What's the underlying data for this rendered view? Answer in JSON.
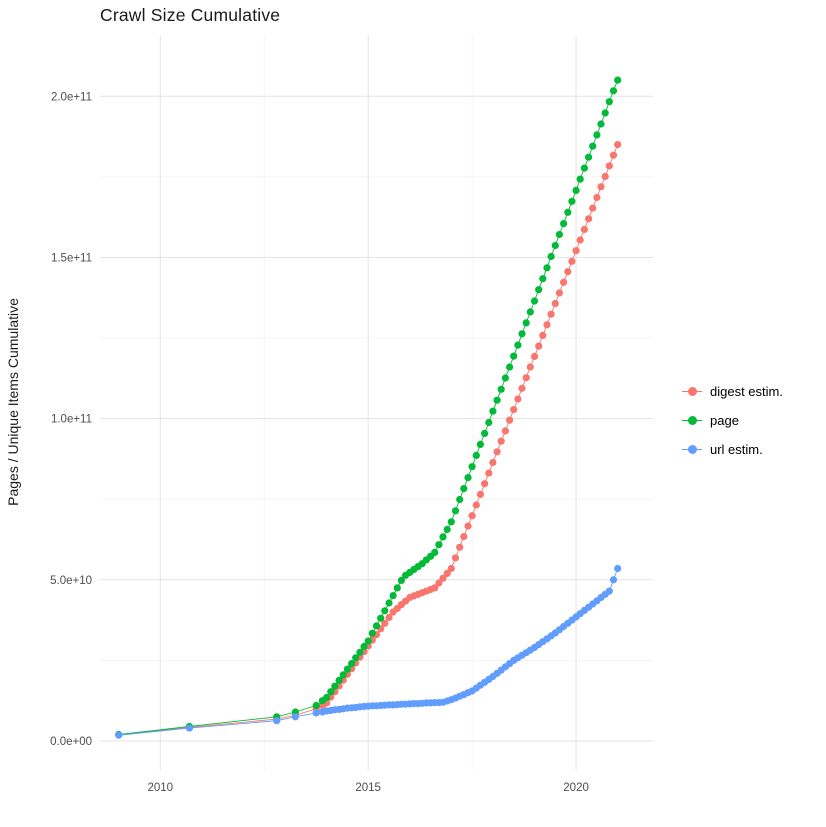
{
  "chart_data": {
    "type": "scatter",
    "style": "points connected by thin lines (ggplot2 look)",
    "title": "Crawl Size Cumulative",
    "xlabel": "",
    "ylabel": "Pages / Unique Items Cumulative",
    "values_unit": "billions (1e9)",
    "xlim": [
      2008.55,
      2021.85
    ],
    "ylim": [
      0,
      219000000000
    ],
    "grid": true,
    "legend_position": "right",
    "colors": {
      "panel_background": "#ffffff",
      "grid_major": "#e3e3e3",
      "grid_minor": "#f1f1f1",
      "tick_label": "#4d4d4d",
      "digest": "#F8766D",
      "page": "#00BA38",
      "url": "#619CFF"
    },
    "x_ticks": [
      {
        "value": 2010,
        "label": "2010"
      },
      {
        "value": 2015,
        "label": "2015"
      },
      {
        "value": 2020,
        "label": "2020"
      }
    ],
    "y_ticks": [
      {
        "value": 0,
        "label": "0.0e+00"
      },
      {
        "value": 50,
        "label": "5.0e+10"
      },
      {
        "value": 100,
        "label": "1.0e+11"
      },
      {
        "value": 150,
        "label": "1.5e+11"
      },
      {
        "value": 200,
        "label": "2.0e+11"
      }
    ],
    "x_minor": [
      2012.5,
      2017.5
    ],
    "y_minor": [
      25,
      75,
      125,
      175
    ],
    "series": [
      {
        "name": "digest estim.",
        "color": "#F8766D",
        "points": [
          [
            2009,
            1.9
          ],
          [
            2010.7,
            4.2
          ],
          [
            2012.8,
            6.8
          ],
          [
            2013.25,
            8
          ],
          [
            2013.75,
            10
          ],
          [
            2013.9,
            11
          ],
          [
            2014,
            11.8
          ],
          [
            2014.1,
            13.6
          ],
          [
            2014.2,
            15.3
          ],
          [
            2014.3,
            17.1
          ],
          [
            2014.4,
            18.9
          ],
          [
            2014.5,
            20.7
          ],
          [
            2014.6,
            22.4
          ],
          [
            2014.7,
            24.2
          ],
          [
            2014.8,
            26
          ],
          [
            2014.9,
            27.7
          ],
          [
            2015,
            29.5
          ],
          [
            2015.1,
            31.3
          ],
          [
            2015.2,
            33
          ],
          [
            2015.3,
            34.8
          ],
          [
            2015.4,
            36.5
          ],
          [
            2015.5,
            38.3
          ],
          [
            2015.6,
            40
          ],
          [
            2015.7,
            41.1
          ],
          [
            2015.8,
            42.3
          ],
          [
            2015.9,
            43.4
          ],
          [
            2016,
            44.5
          ],
          [
            2016.1,
            45
          ],
          [
            2016.2,
            45.5
          ],
          [
            2016.3,
            46
          ],
          [
            2016.4,
            46.5
          ],
          [
            2016.5,
            47
          ],
          [
            2016.6,
            47.5
          ],
          [
            2016.7,
            49
          ],
          [
            2016.8,
            50.5
          ],
          [
            2016.9,
            52
          ],
          [
            2017,
            53.5
          ],
          [
            2017.1,
            56.8
          ],
          [
            2017.2,
            60.1
          ],
          [
            2017.3,
            63.4
          ],
          [
            2017.4,
            66.7
          ],
          [
            2017.5,
            69.9
          ],
          [
            2017.6,
            73.2
          ],
          [
            2017.7,
            76.5
          ],
          [
            2017.8,
            79.8
          ],
          [
            2017.9,
            83.1
          ],
          [
            2018,
            86.4
          ],
          [
            2018.1,
            89.7
          ],
          [
            2018.2,
            93
          ],
          [
            2018.3,
            96.2
          ],
          [
            2018.4,
            99.5
          ],
          [
            2018.5,
            102.8
          ],
          [
            2018.6,
            106.1
          ],
          [
            2018.7,
            109.4
          ],
          [
            2018.8,
            112.7
          ],
          [
            2018.9,
            116
          ],
          [
            2019,
            119.3
          ],
          [
            2019.1,
            122.5
          ],
          [
            2019.2,
            125.8
          ],
          [
            2019.3,
            129.1
          ],
          [
            2019.4,
            132.4
          ],
          [
            2019.5,
            135.7
          ],
          [
            2019.6,
            139
          ],
          [
            2019.7,
            142.3
          ],
          [
            2019.8,
            145.6
          ],
          [
            2019.9,
            148.8
          ],
          [
            2020,
            152.1
          ],
          [
            2020.1,
            155.4
          ],
          [
            2020.2,
            158.7
          ],
          [
            2020.3,
            162
          ],
          [
            2020.4,
            165.3
          ],
          [
            2020.5,
            168.6
          ],
          [
            2020.6,
            171.9
          ],
          [
            2020.7,
            175.1
          ],
          [
            2020.8,
            178.4
          ],
          [
            2020.9,
            181.7
          ],
          [
            2021,
            185
          ]
        ]
      },
      {
        "name": "page",
        "color": "#00BA38",
        "points": [
          [
            2009,
            2
          ],
          [
            2010.7,
            4.5
          ],
          [
            2012.8,
            7.5
          ],
          [
            2013.25,
            9
          ],
          [
            2013.75,
            11
          ],
          [
            2013.9,
            12.5
          ],
          [
            2014,
            13.5
          ],
          [
            2014.1,
            15.3
          ],
          [
            2014.2,
            17
          ],
          [
            2014.3,
            18.8
          ],
          [
            2014.4,
            20.5
          ],
          [
            2014.5,
            22.3
          ],
          [
            2014.6,
            24
          ],
          [
            2014.7,
            25.8
          ],
          [
            2014.8,
            27.5
          ],
          [
            2014.9,
            29.3
          ],
          [
            2015,
            31
          ],
          [
            2015.1,
            33.4
          ],
          [
            2015.2,
            35.7
          ],
          [
            2015.3,
            38.1
          ],
          [
            2015.4,
            40.4
          ],
          [
            2015.5,
            42.8
          ],
          [
            2015.6,
            45.1
          ],
          [
            2015.7,
            47.5
          ],
          [
            2015.8,
            49.8
          ],
          [
            2015.9,
            51.4
          ],
          [
            2016,
            52.3
          ],
          [
            2016.1,
            53.2
          ],
          [
            2016.2,
            54.1
          ],
          [
            2016.3,
            55
          ],
          [
            2016.4,
            56.2
          ],
          [
            2016.5,
            57.3
          ],
          [
            2016.6,
            58.5
          ],
          [
            2016.7,
            60.9
          ],
          [
            2016.8,
            63.3
          ],
          [
            2016.9,
            65.6
          ],
          [
            2017,
            68
          ],
          [
            2017.1,
            71.4
          ],
          [
            2017.2,
            74.9
          ],
          [
            2017.3,
            78.3
          ],
          [
            2017.4,
            81.7
          ],
          [
            2017.5,
            85.1
          ],
          [
            2017.6,
            88.6
          ],
          [
            2017.7,
            92
          ],
          [
            2017.8,
            95.4
          ],
          [
            2017.9,
            98.8
          ],
          [
            2018,
            102.3
          ],
          [
            2018.1,
            105.7
          ],
          [
            2018.2,
            109.1
          ],
          [
            2018.3,
            112.6
          ],
          [
            2018.4,
            116
          ],
          [
            2018.5,
            119.4
          ],
          [
            2018.6,
            122.8
          ],
          [
            2018.7,
            126.3
          ],
          [
            2018.8,
            129.7
          ],
          [
            2018.9,
            133.1
          ],
          [
            2019,
            136.5
          ],
          [
            2019.1,
            140
          ],
          [
            2019.2,
            143.4
          ],
          [
            2019.3,
            146.8
          ],
          [
            2019.4,
            150.3
          ],
          [
            2019.5,
            153.7
          ],
          [
            2019.6,
            157.1
          ],
          [
            2019.7,
            160.5
          ],
          [
            2019.8,
            164
          ],
          [
            2019.9,
            167.4
          ],
          [
            2020,
            170.8
          ],
          [
            2020.1,
            174.3
          ],
          [
            2020.2,
            177.7
          ],
          [
            2020.3,
            181.1
          ],
          [
            2020.4,
            184.5
          ],
          [
            2020.5,
            188
          ],
          [
            2020.6,
            191.4
          ],
          [
            2020.7,
            194.8
          ],
          [
            2020.8,
            198.3
          ],
          [
            2020.9,
            201.7
          ],
          [
            2021,
            205
          ]
        ]
      },
      {
        "name": "url estim.",
        "color": "#619CFF",
        "points": [
          [
            2009,
            1.8
          ],
          [
            2010.7,
            4
          ],
          [
            2012.8,
            6.3
          ],
          [
            2013.25,
            7.5
          ],
          [
            2013.75,
            8.7
          ],
          [
            2013.9,
            9
          ],
          [
            2014,
            9.3
          ],
          [
            2014.1,
            9.5
          ],
          [
            2014.2,
            9.7
          ],
          [
            2014.3,
            9.8
          ],
          [
            2014.4,
            10
          ],
          [
            2014.5,
            10.2
          ],
          [
            2014.6,
            10.3
          ],
          [
            2014.7,
            10.4
          ],
          [
            2014.8,
            10.6
          ],
          [
            2014.9,
            10.7
          ],
          [
            2015,
            10.8
          ],
          [
            2015.1,
            10.9
          ],
          [
            2015.2,
            10.9
          ],
          [
            2015.3,
            11
          ],
          [
            2015.4,
            11.1
          ],
          [
            2015.5,
            11.2
          ],
          [
            2015.6,
            11.2
          ],
          [
            2015.7,
            11.3
          ],
          [
            2015.8,
            11.4
          ],
          [
            2015.9,
            11.4
          ],
          [
            2016,
            11.5
          ],
          [
            2016.1,
            11.6
          ],
          [
            2016.2,
            11.6
          ],
          [
            2016.3,
            11.7
          ],
          [
            2016.4,
            11.8
          ],
          [
            2016.5,
            11.8
          ],
          [
            2016.6,
            11.9
          ],
          [
            2016.7,
            11.9
          ],
          [
            2016.8,
            12
          ],
          [
            2016.9,
            12.4
          ],
          [
            2017,
            12.8
          ],
          [
            2017.1,
            13.3
          ],
          [
            2017.2,
            13.9
          ],
          [
            2017.3,
            14.4
          ],
          [
            2017.4,
            15
          ],
          [
            2017.5,
            15.5
          ],
          [
            2017.6,
            16.4
          ],
          [
            2017.7,
            17.3
          ],
          [
            2017.8,
            18.2
          ],
          [
            2017.9,
            19.1
          ],
          [
            2018,
            20
          ],
          [
            2018.1,
            21
          ],
          [
            2018.2,
            22
          ],
          [
            2018.3,
            23
          ],
          [
            2018.4,
            24
          ],
          [
            2018.5,
            25
          ],
          [
            2018.6,
            25.8
          ],
          [
            2018.7,
            26.6
          ],
          [
            2018.8,
            27.4
          ],
          [
            2018.9,
            28.2
          ],
          [
            2019,
            29
          ],
          [
            2019.1,
            29.9
          ],
          [
            2019.2,
            30.8
          ],
          [
            2019.3,
            31.7
          ],
          [
            2019.4,
            32.6
          ],
          [
            2019.5,
            33.5
          ],
          [
            2019.6,
            34.5
          ],
          [
            2019.7,
            35.5
          ],
          [
            2019.8,
            36.5
          ],
          [
            2019.9,
            37.5
          ],
          [
            2020,
            38.5
          ],
          [
            2020.1,
            39.5
          ],
          [
            2020.2,
            40.5
          ],
          [
            2020.3,
            41.5
          ],
          [
            2020.4,
            42.5
          ],
          [
            2020.5,
            43.5
          ],
          [
            2020.6,
            44.5
          ],
          [
            2020.7,
            45.5
          ],
          [
            2020.8,
            46.5
          ],
          [
            2020.9,
            50
          ],
          [
            2021,
            53.5
          ]
        ]
      }
    ]
  }
}
